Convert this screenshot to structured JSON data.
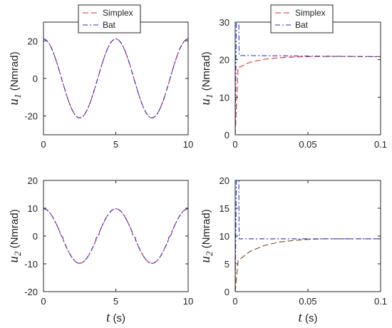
{
  "chart_data": [
    {
      "type": "line",
      "position": "top-left",
      "ylabel": {
        "symbol": "u",
        "sub": "1",
        "unit": "(Nmrad)"
      },
      "xlabel": null,
      "xlim": [
        0,
        10
      ],
      "ylim": [
        -30,
        30
      ],
      "xticks": [
        0,
        5,
        10
      ],
      "xtick_labels": [
        "0",
        "5",
        "10"
      ],
      "yticks": [
        -20,
        0,
        20
      ],
      "ytick_labels": [
        "-20",
        "0",
        "20"
      ],
      "grid": false,
      "legend": {
        "placement": "top-left, above axes",
        "entries": [
          "Simplex",
          "Bat"
        ]
      },
      "series": [
        {
          "name": "Simplex",
          "style": "dashed",
          "color": "#e8252b",
          "kind": "cosine",
          "amplitude": 21,
          "period": 5,
          "x_range": [
            0,
            10
          ]
        },
        {
          "name": "Bat",
          "style": "dashdot",
          "color": "#2c2cd6",
          "kind": "cosine",
          "amplitude": 21,
          "period": 5,
          "x_range": [
            0,
            10
          ]
        }
      ]
    },
    {
      "type": "line",
      "position": "top-right",
      "ylabel": {
        "symbol": "u",
        "sub": "1",
        "unit": "(Nmrad)"
      },
      "xlabel": null,
      "xlim": [
        0,
        0.1
      ],
      "ylim": [
        0,
        30
      ],
      "xticks": [
        0,
        0.05,
        0.1
      ],
      "xtick_labels": [
        "0",
        "0.05",
        "0.1"
      ],
      "yticks": [
        0,
        10,
        20,
        30
      ],
      "ytick_labels": [
        "0",
        "10",
        "20",
        "30"
      ],
      "grid": false,
      "legend": {
        "placement": "top-center, above axes",
        "entries": [
          "Simplex",
          "Bat"
        ]
      },
      "series": [
        {
          "name": "Simplex",
          "style": "dashed",
          "color": "#e8252b",
          "x": [
            0,
            0.002,
            0.003,
            0.01,
            0.02,
            0.03,
            0.04,
            0.05,
            0.06,
            0.07,
            0.08,
            0.1
          ],
          "y": [
            0,
            18.0,
            18.0,
            19.3,
            20.1,
            20.5,
            20.7,
            20.8,
            20.85,
            20.85,
            20.85,
            20.8
          ]
        },
        {
          "name": "Bat",
          "style": "dashdot",
          "color": "#2c2cd6",
          "x": [
            0,
            0.0008,
            0.001,
            0.0025,
            0.0027,
            0.003,
            0.1
          ],
          "y": [
            0,
            30,
            30,
            30,
            21.1,
            21.1,
            20.8
          ]
        }
      ]
    },
    {
      "type": "line",
      "position": "bottom-left",
      "ylabel": {
        "symbol": "u",
        "sub": "2",
        "unit": "(Nmrad)"
      },
      "xlabel": {
        "symbol": "t",
        "unit": "(s)"
      },
      "xlim": [
        0,
        10
      ],
      "ylim": [
        -20,
        20
      ],
      "xticks": [
        0,
        5,
        10
      ],
      "xtick_labels": [
        "0",
        "5",
        "10"
      ],
      "yticks": [
        -20,
        -10,
        0,
        10,
        20
      ],
      "ytick_labels": [
        "-20",
        "-10",
        "0",
        "10",
        "20"
      ],
      "grid": false,
      "legend": null,
      "series": [
        {
          "name": "Simplex",
          "style": "dashed",
          "color": "#e8252b",
          "kind": "cosine-notched",
          "amplitude": 9.8,
          "period": 5,
          "x_range": [
            0,
            10
          ]
        },
        {
          "name": "Bat",
          "style": "dashdot",
          "color": "#2c2cd6",
          "kind": "cosine-notched",
          "amplitude": 9.8,
          "period": 5,
          "x_range": [
            0,
            10
          ]
        }
      ]
    },
    {
      "type": "line",
      "position": "bottom-right",
      "ylabel": {
        "symbol": "u",
        "sub": "2",
        "unit": "(Nmrad)"
      },
      "xlabel": {
        "symbol": "t",
        "unit": "(s)"
      },
      "xlim": [
        0,
        0.1
      ],
      "ylim": [
        0,
        20
      ],
      "xticks": [
        0,
        0.05,
        0.1
      ],
      "xtick_labels": [
        "0",
        "0.05",
        "0.1"
      ],
      "yticks": [
        0,
        5,
        10,
        15,
        20
      ],
      "ytick_labels": [
        "0",
        "5",
        "10",
        "15",
        "20"
      ],
      "grid": false,
      "legend": null,
      "series": [
        {
          "name": "Simplex",
          "style": "dashed",
          "color": "#7a4a10",
          "x": [
            0,
            0.002,
            0.003,
            0.01,
            0.02,
            0.03,
            0.04,
            0.05,
            0.06,
            0.08,
            0.1
          ],
          "y": [
            0,
            5.6,
            5.8,
            7.2,
            8.3,
            8.9,
            9.2,
            9.4,
            9.5,
            9.5,
            9.5
          ]
        },
        {
          "name": "Bat",
          "style": "dashdot",
          "color": "#2c2cd6",
          "x": [
            0,
            0.0008,
            0.001,
            0.0025,
            0.0027,
            0.003,
            0.1
          ],
          "y": [
            0,
            20,
            20,
            20,
            9.5,
            9.5,
            9.5
          ]
        }
      ]
    }
  ]
}
